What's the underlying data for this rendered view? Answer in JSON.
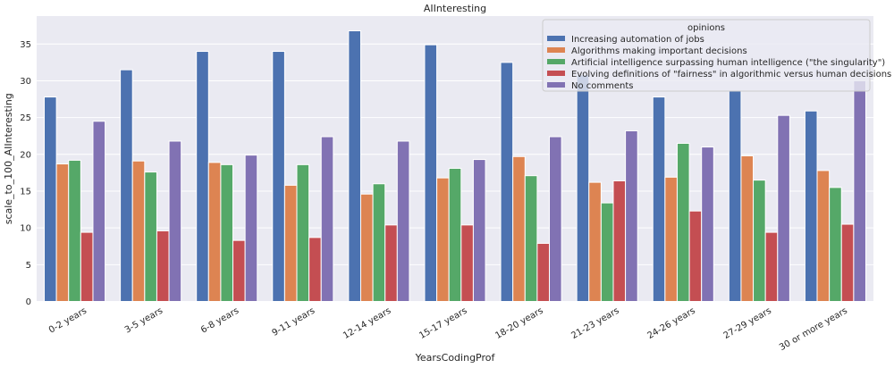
{
  "chart_data": {
    "type": "bar",
    "title": "AIInteresting",
    "xlabel": "YearsCodingProf",
    "ylabel": "scale_to_100_AIInteresting",
    "ylim": [
      0,
      38.8
    ],
    "yticks": [
      0,
      5,
      10,
      15,
      20,
      25,
      30,
      35
    ],
    "grid": true,
    "legend": {
      "title": "opinions",
      "placement": "top-right"
    },
    "categories": [
      "0-2 years",
      "3-5 years",
      "6-8 years",
      "9-11 years",
      "12-14 years",
      "15-17 years",
      "18-20 years",
      "21-23 years",
      "24-26 years",
      "27-29 years",
      "30 or more years"
    ],
    "series": [
      {
        "name": "Increasing automation of jobs",
        "color": "#4C72B0",
        "values": [
          27.8,
          31.5,
          34.0,
          34.0,
          36.8,
          34.9,
          32.5,
          30.8,
          27.8,
          28.6,
          25.9
        ]
      },
      {
        "name": "Algorithms making important decisions",
        "color": "#DD8452",
        "values": [
          18.7,
          19.1,
          18.9,
          15.8,
          14.6,
          16.8,
          19.7,
          16.2,
          16.9,
          19.8,
          17.8
        ]
      },
      {
        "name": "Artificial intelligence surpassing human intelligence (\"the singularity\")",
        "color": "#55A868",
        "values": [
          19.2,
          17.6,
          18.6,
          18.6,
          16.0,
          18.1,
          17.1,
          13.4,
          21.5,
          16.5,
          15.5
        ]
      },
      {
        "name": "Evolving definitions of \"fairness\" in algorithmic versus human decisions",
        "color": "#C44E52",
        "values": [
          9.4,
          9.6,
          8.3,
          8.7,
          10.4,
          10.4,
          7.9,
          16.4,
          12.3,
          9.4,
          10.5
        ]
      },
      {
        "name": "No comments",
        "color": "#8172B3",
        "values": [
          24.5,
          21.8,
          19.9,
          22.4,
          21.8,
          19.3,
          22.4,
          23.2,
          21.0,
          25.3,
          30.0
        ]
      }
    ]
  }
}
